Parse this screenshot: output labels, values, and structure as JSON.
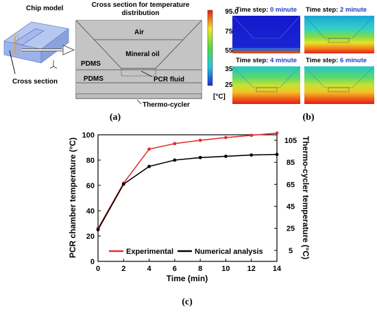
{
  "panel_a": {
    "label": "(a)",
    "chip_model_label": "Chip model",
    "cross_section_label": "Cross section",
    "cross_section_title_1": "Cross section for temperature",
    "cross_section_title_2": "distribution",
    "layers": {
      "air": "Air",
      "mineral_oil": "Mineral oil",
      "pdms_upper": "PDMS",
      "pdms_lower": "PDMS",
      "pcr_fluid": "PCR fluid",
      "thermo_cycler": "Thermo-cycler"
    },
    "colorbar": {
      "ticks": [
        "95.0",
        "75.0",
        "55.0",
        "35.0",
        "25.0"
      ],
      "unit": "[°C]"
    }
  },
  "panel_b": {
    "label": "(b)",
    "thumbnails": [
      {
        "prefix": "Time step: ",
        "value": "0 minute"
      },
      {
        "prefix": "Time step: ",
        "value": "2 minute"
      },
      {
        "prefix": "Time step: ",
        "value": "4 minute"
      },
      {
        "prefix": "Time step: ",
        "value": "6 minute"
      }
    ]
  },
  "panel_c": {
    "label": "(c)"
  },
  "chart_data": {
    "type": "line",
    "title": "",
    "xlabel": "Time (min)",
    "ylabel": "PCR chamber temperature (°C)",
    "ylabel_right": "Thermo-cycler temperature (°C)",
    "xlim": [
      0,
      14
    ],
    "ylim": [
      0,
      100
    ],
    "ylim_right": [
      -5,
      110
    ],
    "x_ticks": [
      "0",
      "2",
      "4",
      "6",
      "8",
      "10",
      "12",
      "14"
    ],
    "y_ticks": [
      "0",
      "20",
      "40",
      "60",
      "80",
      "100"
    ],
    "y_ticks_right": [
      "5",
      "25",
      "45",
      "65",
      "85",
      "105"
    ],
    "grid": false,
    "legend_position": "bottom",
    "x": [
      0,
      2,
      4,
      6,
      8,
      10,
      12,
      14
    ],
    "series": [
      {
        "name": "Experimental",
        "color": "#e03030",
        "axis": "right",
        "values": [
          25,
          66,
          97,
          102,
          105,
          107.5,
          109.5,
          111.5
        ]
      },
      {
        "name": "Numerical analysis",
        "color": "#000000",
        "axis": "left",
        "values": [
          25,
          61,
          75,
          80,
          82,
          83,
          84,
          84.5
        ]
      }
    ]
  }
}
